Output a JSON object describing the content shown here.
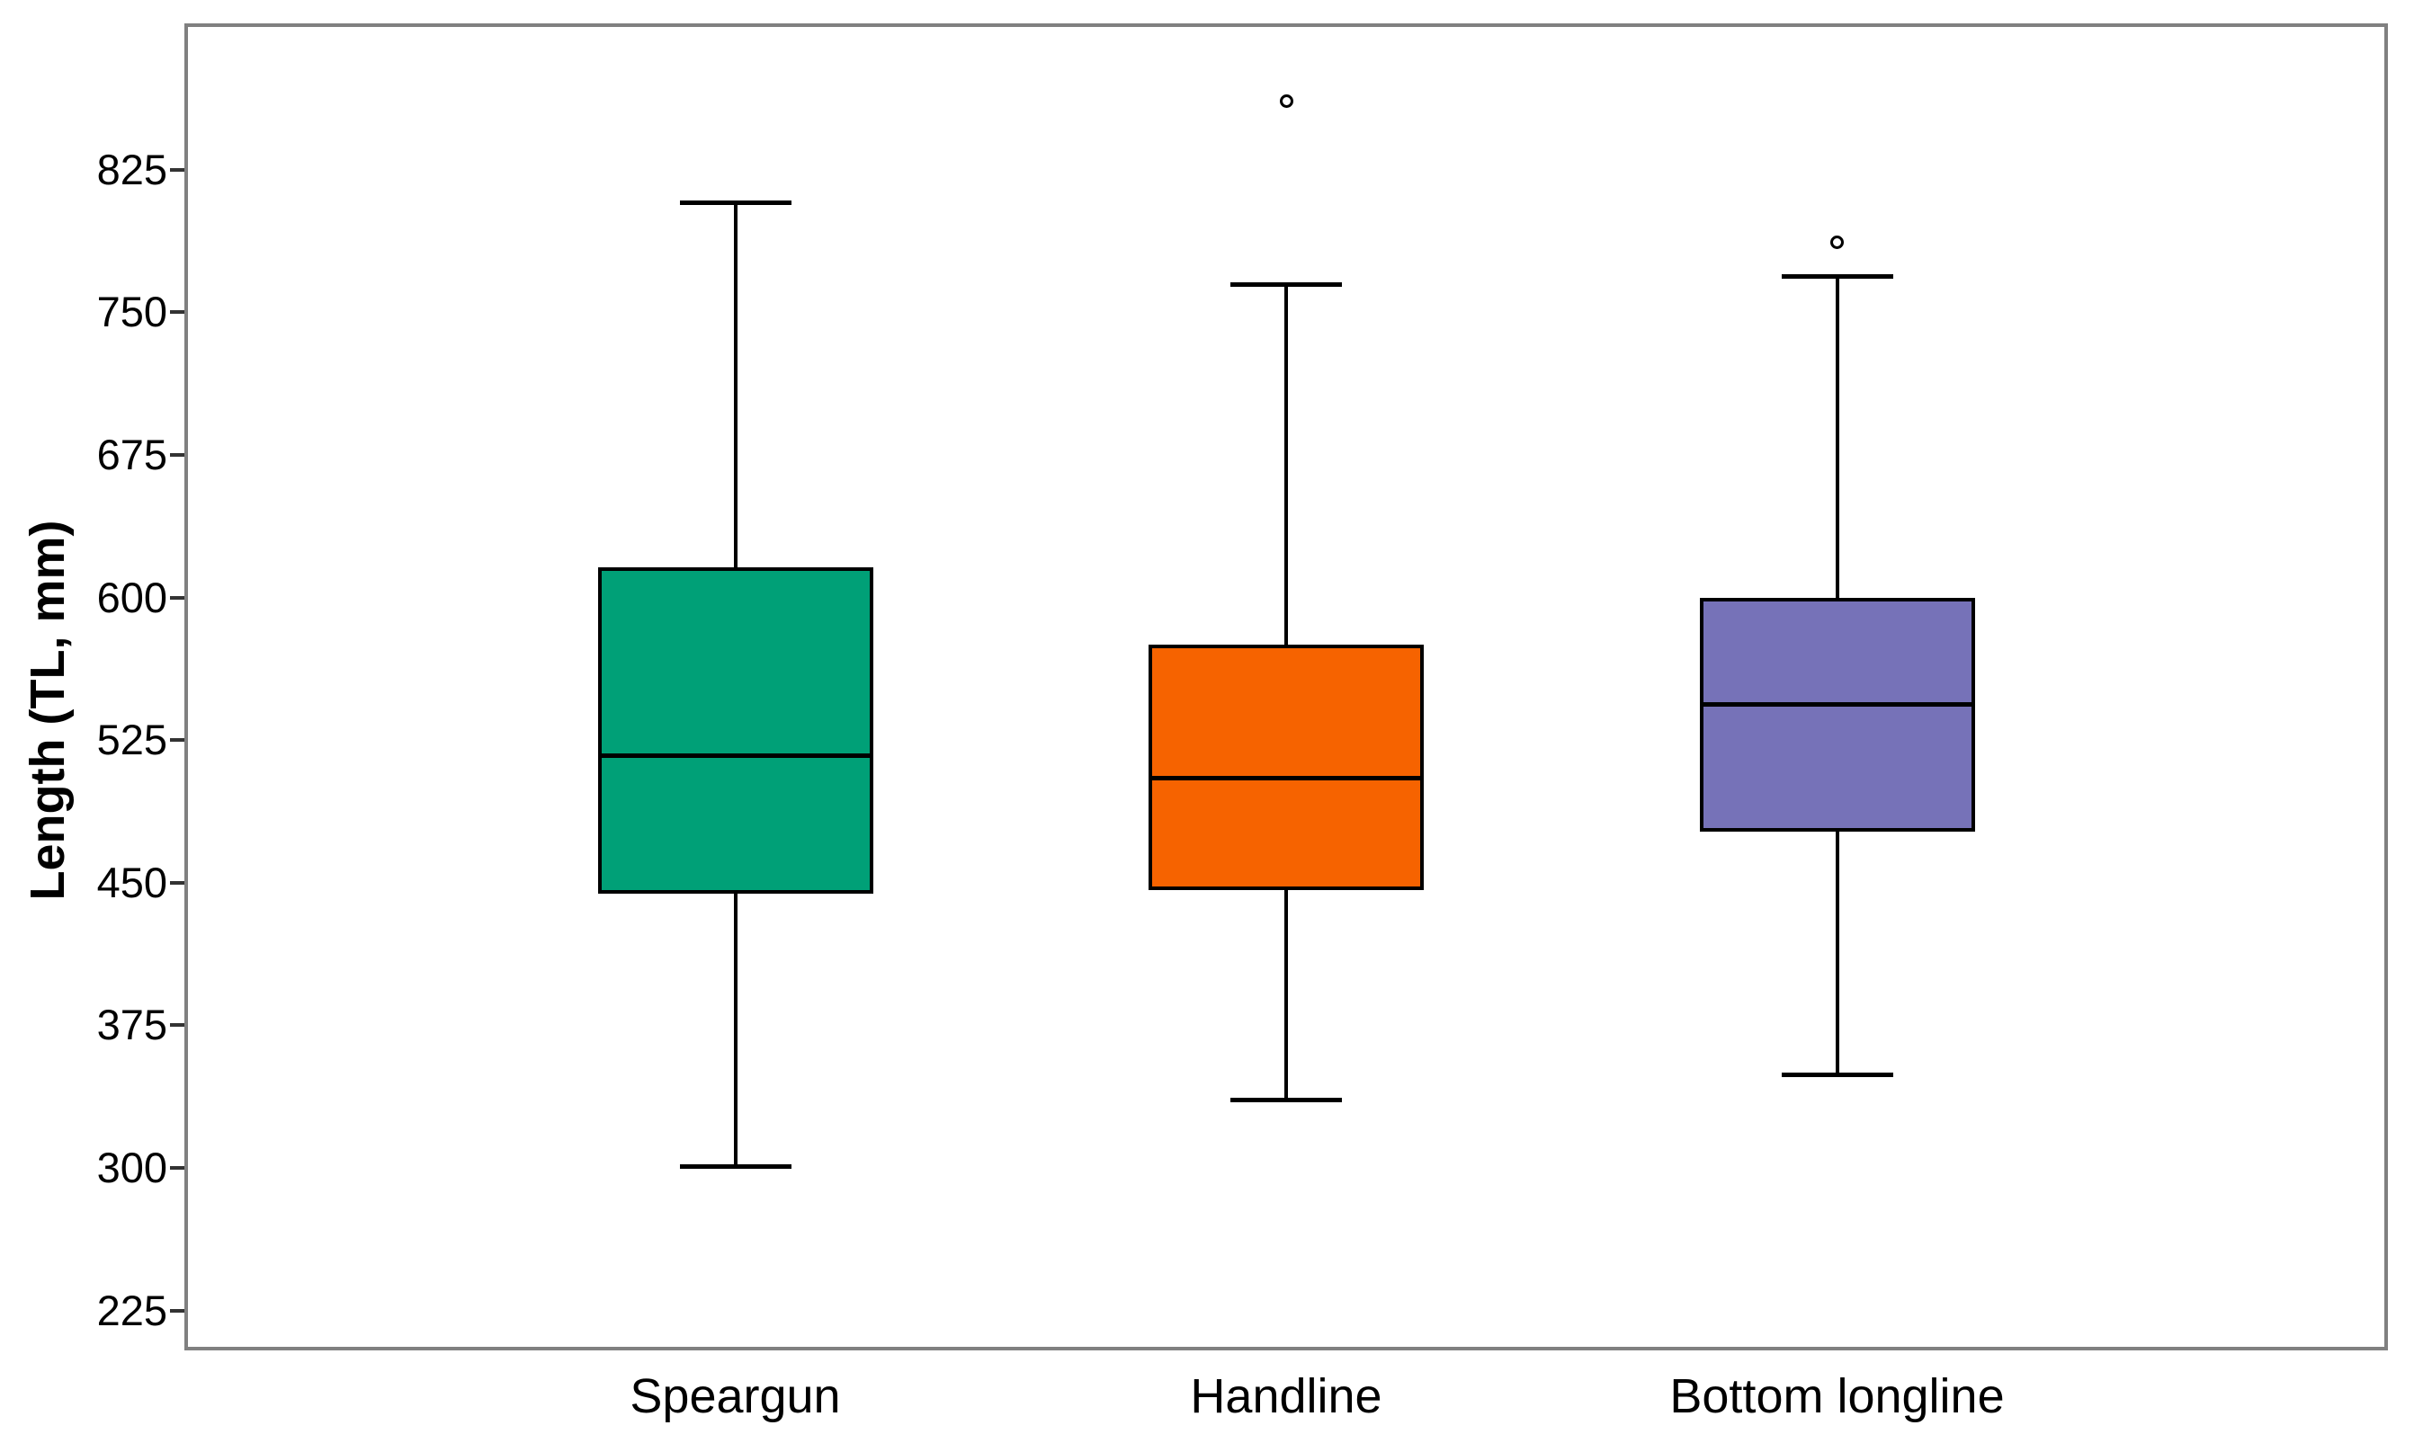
{
  "chart_data": {
    "type": "boxplot",
    "title": "",
    "xlabel": "",
    "ylabel": "Length (TL, mm)",
    "categories": [
      "Speargun",
      "Handline",
      "Bottom longline"
    ],
    "yticks": [
      225,
      300,
      375,
      450,
      525,
      600,
      675,
      750,
      825
    ],
    "ylim": [
      204,
      902
    ],
    "grid": false,
    "legend": false,
    "series": [
      {
        "name": "Speargun",
        "color": "#00A077",
        "whisker_low": 301,
        "q1": 444,
        "median": 517,
        "q3": 616,
        "whisker_high": 808,
        "outliers": []
      },
      {
        "name": "Handline",
        "color": "#F66300",
        "whisker_low": 336,
        "q1": 446,
        "median": 505,
        "q3": 575,
        "whisker_high": 765,
        "outliers": [
          861
        ]
      },
      {
        "name": "Bottom longline",
        "color": "#7672B8",
        "whisker_low": 349,
        "q1": 477,
        "median": 544,
        "q3": 600,
        "whisker_high": 769,
        "outliers": [
          787
        ]
      }
    ],
    "style": {
      "panel_border_color": "#808080",
      "line_color": "#000000",
      "tick_color": "#333333"
    }
  }
}
